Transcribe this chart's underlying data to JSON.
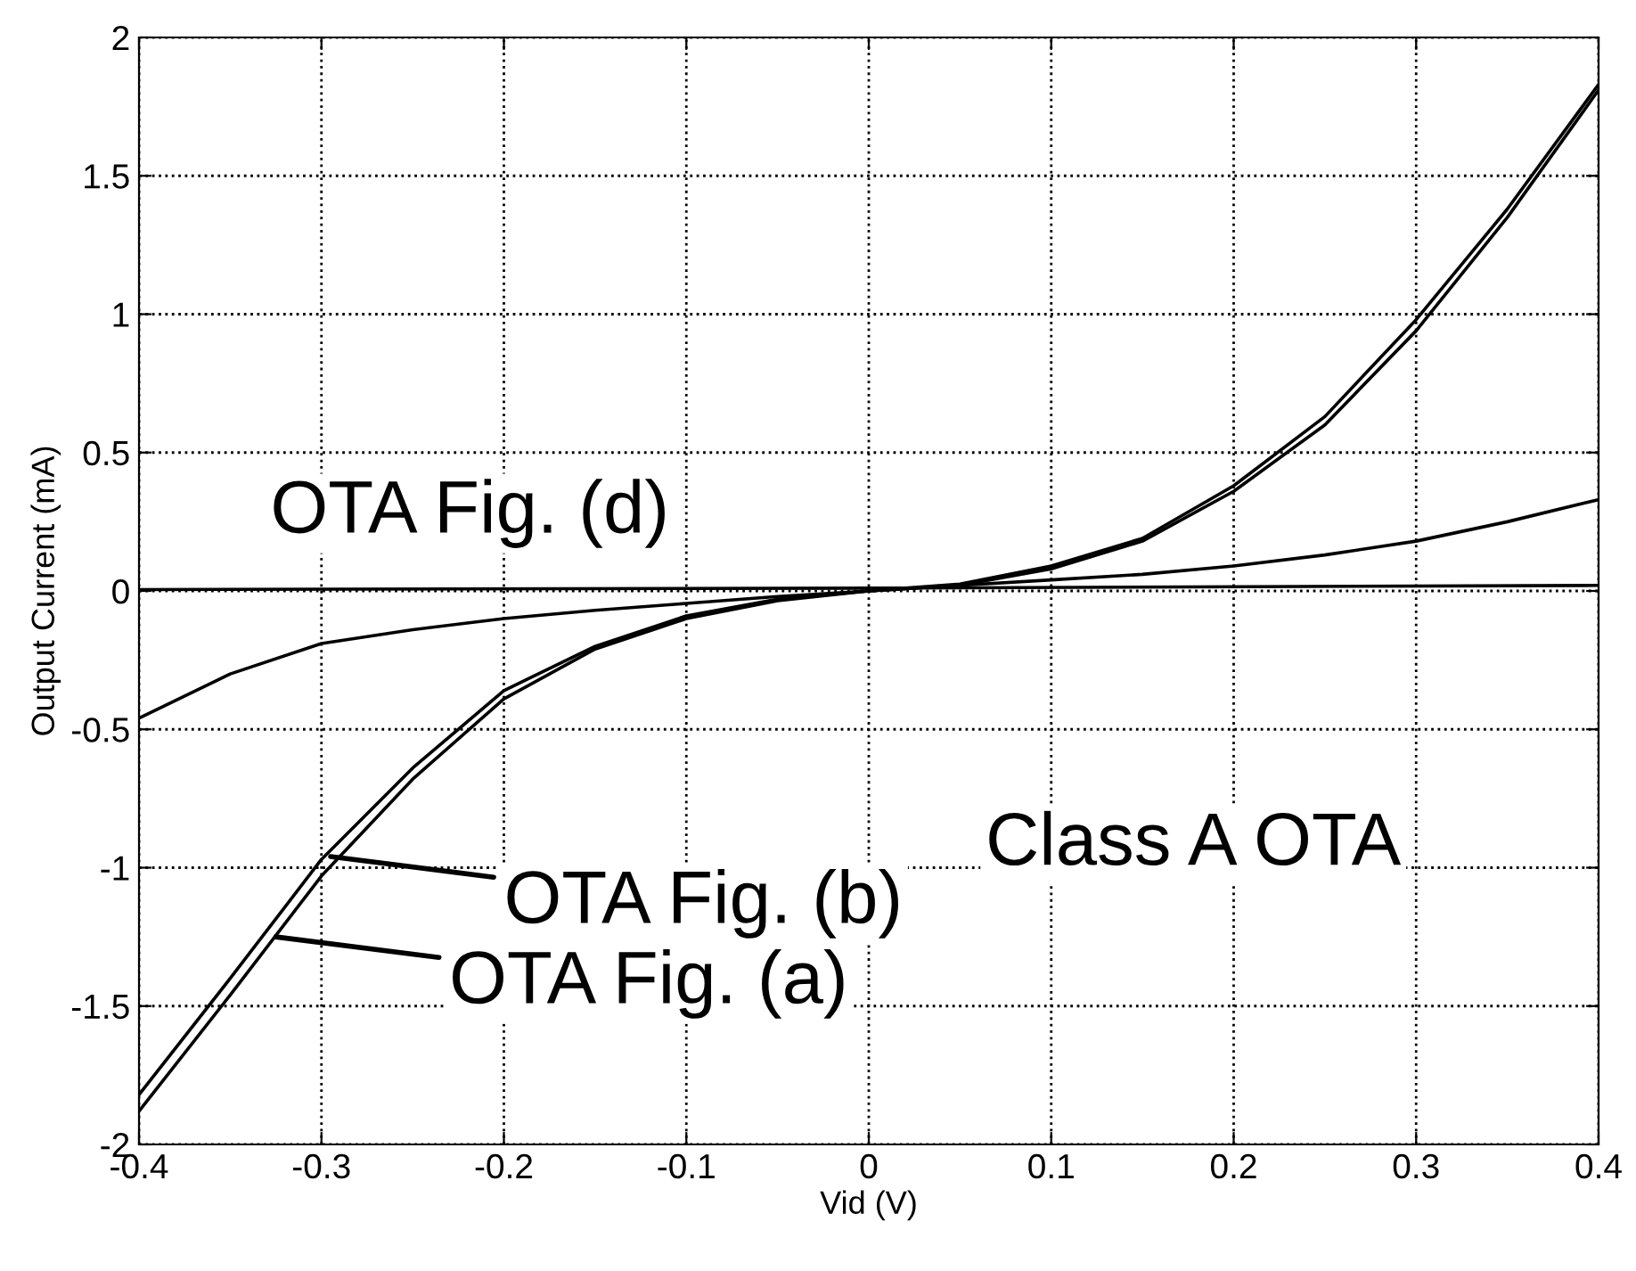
{
  "chart_data": {
    "type": "line",
    "xlabel": "Vid (V)",
    "ylabel": "Output Current (mA)",
    "x": [
      -0.4,
      -0.35,
      -0.3,
      -0.25,
      -0.2,
      -0.15,
      -0.1,
      -0.05,
      0,
      0.05,
      0.1,
      0.15,
      0.2,
      0.25,
      0.3,
      0.35,
      0.4
    ],
    "series": [
      {
        "color": "#000000",
        "values": [
          -1.88,
          -1.46,
          -1.03,
          -0.68,
          -0.39,
          -0.21,
          -0.1,
          -0.035,
          0,
          0.02,
          0.08,
          0.18,
          0.36,
          0.6,
          0.94,
          1.35,
          1.81
        ]
      },
      {
        "color": "#000000",
        "values": [
          -1.82,
          -1.4,
          -0.97,
          -0.64,
          -0.36,
          -0.2,
          -0.09,
          -0.03,
          0,
          0.025,
          0.09,
          0.19,
          0.38,
          0.63,
          0.98,
          1.38,
          1.83
        ]
      },
      {
        "color": "#000000",
        "values": [
          -0.46,
          -0.3,
          -0.19,
          -0.14,
          -0.1,
          -0.07,
          -0.045,
          -0.02,
          0,
          0.02,
          0.04,
          0.06,
          0.09,
          0.13,
          0.18,
          0.25,
          0.33
        ]
      },
      {
        "color": "#000000",
        "x": [
          -0.4,
          0,
          0.4
        ],
        "values": [
          0.005,
          0.01,
          0.02
        ]
      }
    ],
    "annotations": [
      "OTA Fig. (d)",
      "Class A OTA",
      {
        "text": "OTA Fig. (b)",
        "x": -0.295,
        "y": -0.96
      },
      {
        "text": "OTA Fig. (a)",
        "x": -0.325,
        "y": -1.25
      }
    ],
    "xlim": [
      -0.4,
      0.4
    ],
    "xticks": [
      -0.4,
      -0.3,
      -0.2,
      -0.1,
      0,
      0.1,
      0.2,
      0.3,
      0.4
    ],
    "ylim": [
      -2,
      2
    ],
    "yticks": [
      -2,
      -1.5,
      -1,
      -0.5,
      0,
      0.5,
      1,
      1.5,
      2
    ],
    "grid": true,
    "line_style": "solid",
    "marker": "none",
    "legend": false
  }
}
